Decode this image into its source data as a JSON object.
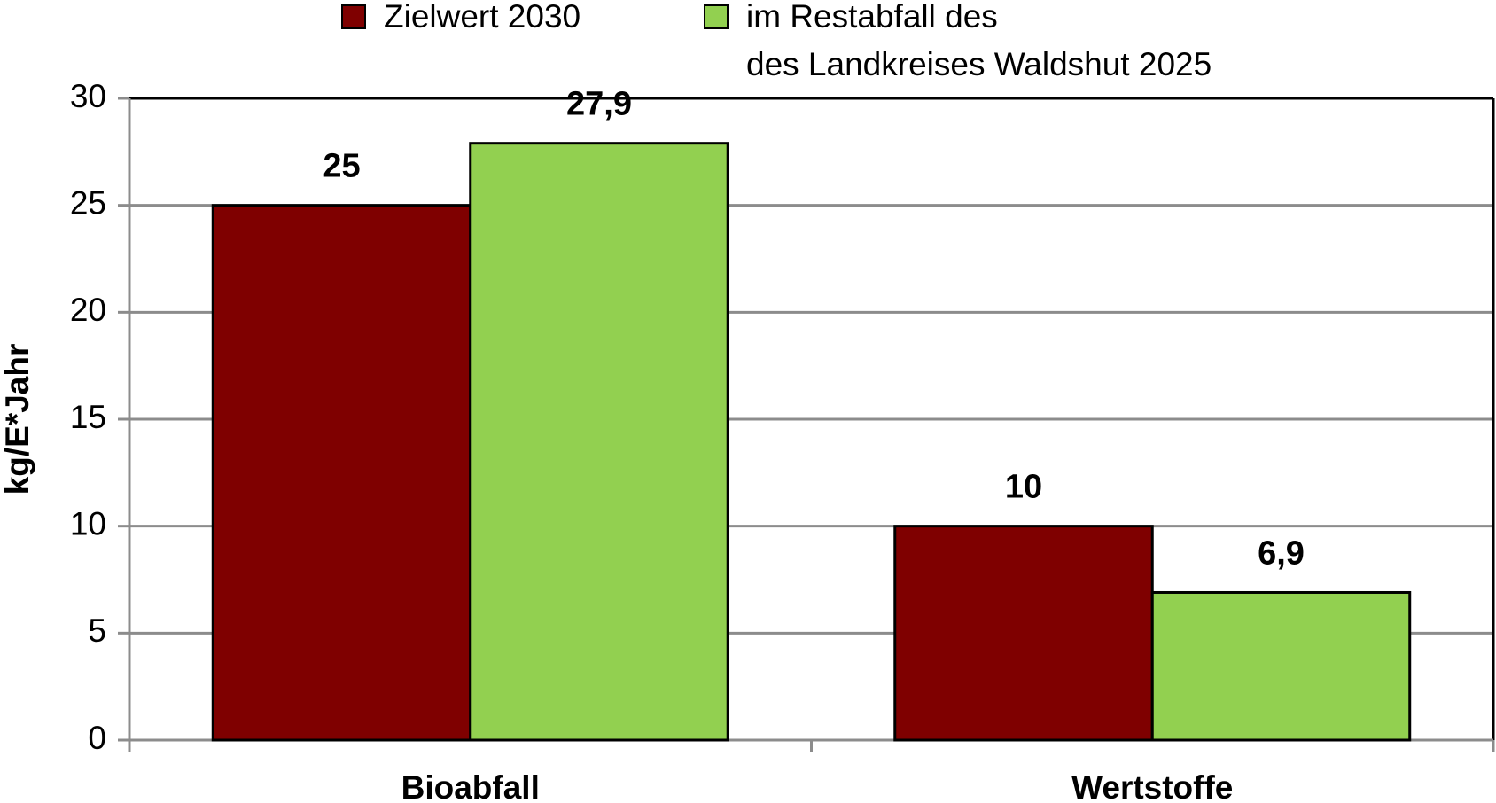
{
  "chart_data": {
    "type": "bar",
    "y_label": "kg/E*Jahr",
    "categories": [
      "Bioabfall",
      "Wertstoffe"
    ],
    "series": [
      {
        "name": "Zielwert 2030",
        "color": "#7f0000",
        "values": [
          25,
          10
        ],
        "value_labels": [
          "25",
          "10"
        ]
      },
      {
        "name": "im Restabfall des\ndes Landkreises Waldshut 2025",
        "color": "#92d050",
        "values": [
          27.9,
          6.9
        ],
        "value_labels": [
          "27,9",
          "6,9"
        ]
      }
    ],
    "ylim": [
      0,
      30
    ],
    "yticks": [
      0,
      5,
      10,
      15,
      20,
      25,
      30
    ],
    "grid": true
  }
}
